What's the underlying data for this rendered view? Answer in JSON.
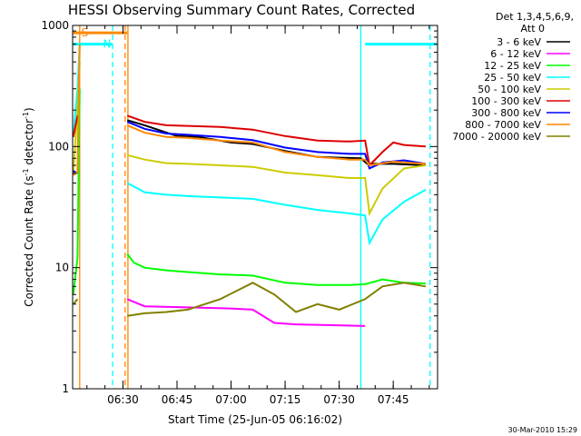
{
  "chart_data": {
    "type": "line",
    "title": "HESSI Observing Summary Count Rates, Corrected",
    "xlabel": "Start Time (25-Jun-05 06:16:02)",
    "ylabel": "Corrected Count Rate (s",
    "ylabel_exp1": "-1",
    "ylabel_mid": " detector",
    "ylabel_exp2": "-1",
    "ylabel_end": ")",
    "y_scale": "log",
    "ylim": [
      1,
      1000
    ],
    "xlim": [
      6.2672,
      7.955
    ],
    "y_ticks": [
      {
        "v": 1,
        "label": "1"
      },
      {
        "v": 10,
        "label": "10"
      },
      {
        "v": 100,
        "label": "100"
      },
      {
        "v": 1000,
        "label": "1000"
      }
    ],
    "x_ticks": [
      {
        "v": 6.5,
        "label": "06:30"
      },
      {
        "v": 6.75,
        "label": "06:45"
      },
      {
        "v": 7.0,
        "label": "07:00"
      },
      {
        "v": 7.25,
        "label": "07:15"
      },
      {
        "v": 7.5,
        "label": "07:30"
      },
      {
        "v": 7.75,
        "label": "07:45"
      }
    ],
    "detector_line1": "Det 1,3,4,5,6,9,",
    "detector_line2": "Att 0",
    "series": [
      {
        "name": "3 - 6 keV",
        "color": "#000000"
      },
      {
        "name": "6 - 12 keV",
        "color": "#ff00ff"
      },
      {
        "name": "12 - 25 keV",
        "color": "#00ff00"
      },
      {
        "name": "25 - 50 keV",
        "color": "#00ffff"
      },
      {
        "name": "50 - 100 keV",
        "color": "#cccc00"
      },
      {
        "name": "100 - 300 keV",
        "color": "#dd0000"
      },
      {
        "name": "300 - 800 keV",
        "color": "#0000ff"
      },
      {
        "name": "800 - 7000 keV",
        "color": "#ff8800"
      },
      {
        "name": "7000 - 20000 keV",
        "color": "#808000"
      }
    ],
    "series_segments": {
      "3 - 6 keV": [
        [
          [
            6.52,
            165
          ],
          [
            6.6,
            150
          ],
          [
            6.75,
            122
          ],
          [
            6.85,
            120
          ],
          [
            7.0,
            108
          ],
          [
            7.1,
            105
          ],
          [
            7.25,
            92
          ],
          [
            7.4,
            82
          ],
          [
            7.6,
            80
          ],
          [
            7.63,
            72
          ],
          [
            7.75,
            72
          ],
          [
            7.9,
            70
          ]
        ]
      ],
      "6 - 12 keV": [
        [
          [
            6.52,
            5.5
          ],
          [
            6.6,
            4.8
          ],
          [
            6.8,
            4.7
          ],
          [
            7.0,
            4.6
          ],
          [
            7.1,
            4.5
          ],
          [
            7.2,
            3.5
          ],
          [
            7.3,
            3.4
          ],
          [
            7.62,
            3.3
          ]
        ]
      ],
      "12 - 25 keV": [
        [
          [
            6.27,
            6
          ],
          [
            6.29,
            12
          ],
          [
            6.3,
            300
          ]
        ],
        [
          [
            6.52,
            13
          ],
          [
            6.55,
            11
          ],
          [
            6.6,
            10
          ],
          [
            6.7,
            9.5
          ],
          [
            6.8,
            9.2
          ],
          [
            6.95,
            8.8
          ],
          [
            7.1,
            8.6
          ],
          [
            7.25,
            7.5
          ],
          [
            7.4,
            7.2
          ],
          [
            7.55,
            7.2
          ],
          [
            7.62,
            7.3
          ],
          [
            7.7,
            8
          ],
          [
            7.8,
            7.5
          ],
          [
            7.9,
            7.4
          ]
        ]
      ],
      "25 - 50 keV": [
        [
          [
            6.27,
            120
          ],
          [
            6.29,
            300
          ],
          [
            6.3,
            700
          ]
        ],
        [
          [
            6.52,
            50
          ],
          [
            6.6,
            42
          ],
          [
            6.7,
            40
          ],
          [
            6.8,
            39
          ],
          [
            6.95,
            38
          ],
          [
            7.1,
            37
          ],
          [
            7.25,
            33
          ],
          [
            7.4,
            30
          ],
          [
            7.55,
            28
          ],
          [
            7.62,
            27
          ],
          [
            7.64,
            16
          ],
          [
            7.7,
            25
          ],
          [
            7.8,
            35
          ],
          [
            7.9,
            44
          ]
        ]
      ],
      "50 - 100 keV": [
        [
          [
            6.27,
            60
          ],
          [
            6.29,
            200
          ],
          [
            6.3,
            500
          ]
        ],
        [
          [
            6.52,
            85
          ],
          [
            6.6,
            78
          ],
          [
            6.7,
            73
          ],
          [
            6.8,
            72
          ],
          [
            6.95,
            70
          ],
          [
            7.1,
            68
          ],
          [
            7.25,
            61
          ],
          [
            7.4,
            58
          ],
          [
            7.55,
            55
          ],
          [
            7.62,
            55
          ],
          [
            7.64,
            28
          ],
          [
            7.7,
            45
          ],
          [
            7.8,
            66
          ],
          [
            7.9,
            70
          ]
        ]
      ],
      "100 - 300 keV": [
        [
          [
            6.27,
            120
          ],
          [
            6.29,
            180
          ]
        ],
        [
          [
            6.52,
            180
          ],
          [
            6.6,
            160
          ],
          [
            6.7,
            150
          ],
          [
            6.8,
            148
          ],
          [
            6.95,
            145
          ],
          [
            7.1,
            138
          ],
          [
            7.25,
            122
          ],
          [
            7.4,
            112
          ],
          [
            7.55,
            110
          ],
          [
            7.62,
            112
          ],
          [
            7.64,
            70
          ],
          [
            7.7,
            90
          ],
          [
            7.75,
            108
          ],
          [
            7.8,
            103
          ],
          [
            7.9,
            100
          ]
        ]
      ],
      "300 - 800 keV": [
        [
          [
            6.27,
            63
          ],
          [
            6.29,
            60
          ]
        ],
        [
          [
            6.52,
            160
          ],
          [
            6.6,
            140
          ],
          [
            6.7,
            128
          ],
          [
            6.8,
            125
          ],
          [
            6.95,
            120
          ],
          [
            7.1,
            113
          ],
          [
            7.25,
            98
          ],
          [
            7.4,
            90
          ],
          [
            7.55,
            87
          ],
          [
            7.62,
            87
          ],
          [
            7.64,
            66
          ],
          [
            7.7,
            74
          ],
          [
            7.8,
            77
          ],
          [
            7.9,
            72
          ]
        ]
      ],
      "800 - 7000 keV": [
        [
          [
            6.27,
            58
          ],
          [
            6.29,
            62
          ],
          [
            6.3,
            700
          ]
        ],
        [
          [
            6.52,
            150
          ],
          [
            6.6,
            130
          ],
          [
            6.7,
            120
          ],
          [
            6.8,
            118
          ],
          [
            6.95,
            112
          ],
          [
            7.1,
            108
          ],
          [
            7.25,
            90
          ],
          [
            7.4,
            82
          ],
          [
            7.55,
            78
          ],
          [
            7.62,
            78
          ],
          [
            7.64,
            70
          ],
          [
            7.75,
            75
          ],
          [
            7.9,
            72
          ]
        ]
      ],
      "7000 - 20000 keV": [
        [
          [
            6.27,
            5.0
          ],
          [
            6.29,
            5.5
          ]
        ],
        [
          [
            6.52,
            4.0
          ],
          [
            6.6,
            4.2
          ],
          [
            6.7,
            4.3
          ],
          [
            6.8,
            4.5
          ],
          [
            6.95,
            5.5
          ],
          [
            7.1,
            7.5
          ],
          [
            7.2,
            6.0
          ],
          [
            7.3,
            4.3
          ],
          [
            7.4,
            5.0
          ],
          [
            7.5,
            4.5
          ],
          [
            7.62,
            5.5
          ],
          [
            7.7,
            7.0
          ],
          [
            7.8,
            7.5
          ],
          [
            7.9,
            7.0
          ]
        ]
      ]
    },
    "flag_bars": [
      {
        "label": "S",
        "color": "#ff8800",
        "x0": 6.27,
        "x1": 6.52,
        "y": 870
      },
      {
        "label": "N",
        "color": "#00ffff",
        "x0": 6.27,
        "x1": 6.45,
        "y": 700
      },
      {
        "label": "",
        "color": "#00ffff",
        "x0": 7.62,
        "x1": 7.95,
        "y": 700
      }
    ],
    "vertical_markers": [
      {
        "x": 6.3,
        "color": "#ff8800",
        "style": "solid"
      },
      {
        "x": 6.452,
        "color": "#00ffff",
        "style": "dashed"
      },
      {
        "x": 6.51,
        "color": "#ff8800",
        "style": "dashed"
      },
      {
        "x": 6.523,
        "color": "#ff8800",
        "style": "solid"
      },
      {
        "x": 7.6,
        "color": "#00ffff",
        "style": "solid"
      },
      {
        "x": 7.92,
        "color": "#00ffff",
        "style": "dashed"
      }
    ]
  },
  "footer": {
    "timestamp": "30-Mar-2010 15:29"
  }
}
